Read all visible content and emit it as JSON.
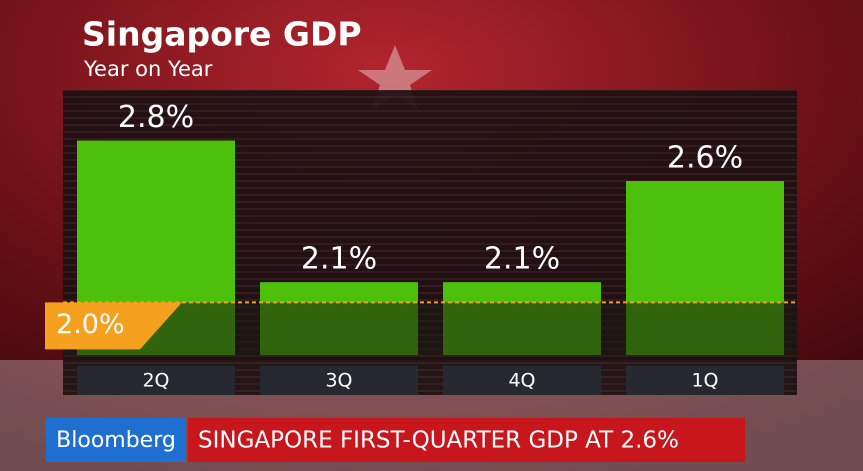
{
  "chart_data": {
    "type": "bar",
    "title": "Singapore GDP",
    "subtitle": "Year on Year",
    "categories": [
      "2Q",
      "3Q",
      "4Q",
      "1Q"
    ],
    "values": [
      2.8,
      2.1,
      2.1,
      2.6
    ],
    "value_labels": [
      "2.8%",
      "2.1%",
      "2.1%",
      "2.6%"
    ],
    "color": "#4cc00a",
    "ylim": [
      1.74,
      3.05
    ],
    "reference_line": {
      "value": 2.0,
      "label": "2.0%",
      "color": "#f5a01e"
    },
    "ticker": {
      "brand": "Bloomberg",
      "headline": "SINGAPORE FIRST-QUARTER GDP AT 2.6%"
    }
  }
}
